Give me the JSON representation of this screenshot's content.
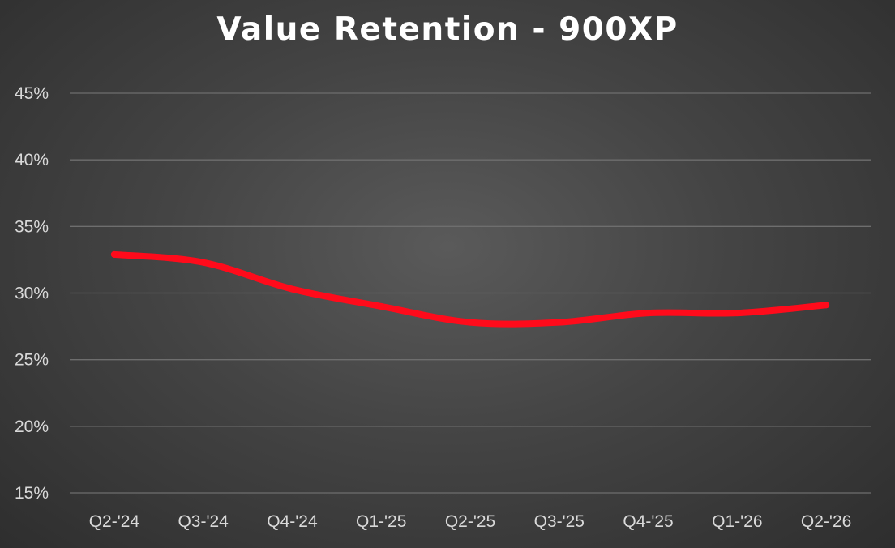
{
  "chart_data": {
    "type": "line",
    "title": "Value Retention - 900XP",
    "xlabel": "",
    "ylabel": "",
    "categories": [
      "Q2-'24",
      "Q3-'24",
      "Q4-'24",
      "Q1-'25",
      "Q2-'25",
      "Q3-'25",
      "Q4-'25",
      "Q1-'26",
      "Q2-'26"
    ],
    "series": [
      {
        "values": [
          32.9,
          32.3,
          30.3,
          29.0,
          27.8,
          27.8,
          28.5,
          28.5,
          29.1
        ],
        "color": "#ff0b1b"
      }
    ],
    "ylim": [
      15,
      45
    ],
    "yticks": [
      15,
      20,
      25,
      30,
      35,
      40,
      45
    ],
    "ytick_labels": [
      "15%",
      "20%",
      "25%",
      "30%",
      "35%",
      "40%",
      "45%"
    ],
    "grid": true,
    "legend": "none"
  }
}
